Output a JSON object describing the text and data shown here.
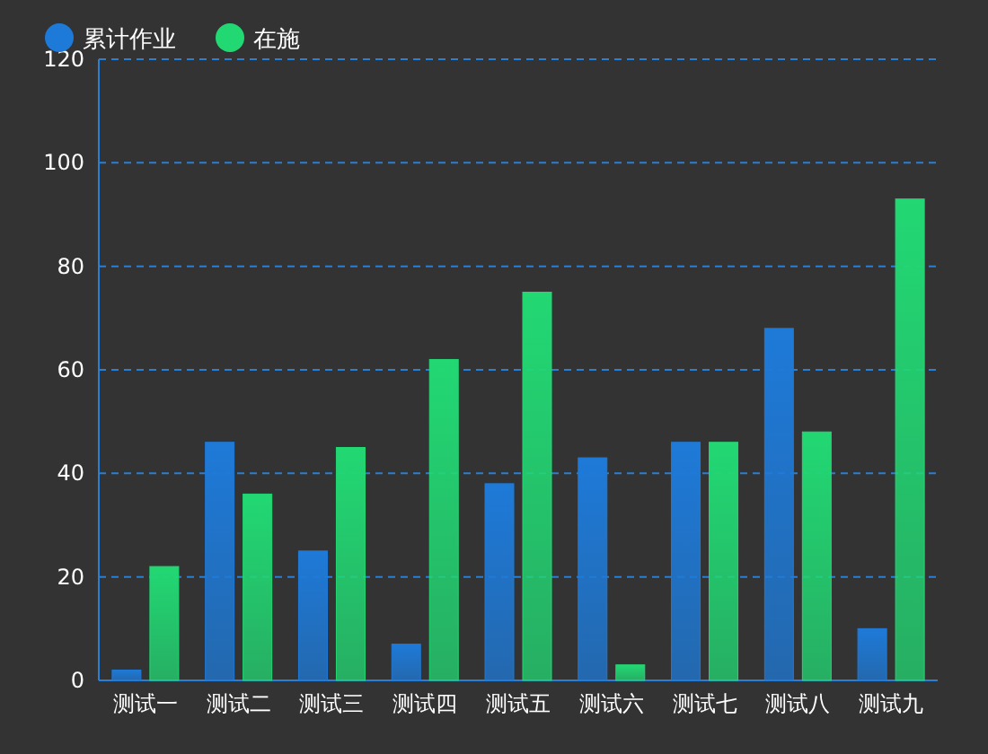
{
  "chart_data": {
    "type": "bar",
    "categories": [
      "测试一",
      "测试二",
      "测试三",
      "测试四",
      "测试五",
      "测试六",
      "测试七",
      "测试八",
      "测试九"
    ],
    "series": [
      {
        "name": "累计作业",
        "color": "#1e7ad8",
        "values": [
          2,
          46,
          25,
          7,
          38,
          43,
          46,
          68,
          10
        ]
      },
      {
        "name": "在施",
        "color": "#22d873",
        "values": [
          22,
          36,
          45,
          62,
          75,
          3,
          46,
          48,
          93
        ]
      }
    ],
    "ylim": [
      0,
      120
    ],
    "yticks": [
      0,
      20,
      40,
      60,
      80,
      100,
      120
    ],
    "grid": "y",
    "legend": "top left"
  }
}
